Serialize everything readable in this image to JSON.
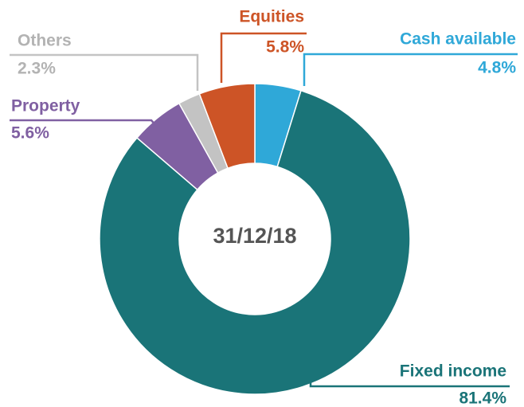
{
  "chart_data": {
    "type": "donut",
    "center_label": "31/12/18",
    "categories": [
      "Cash available",
      "Fixed income",
      "Property",
      "Others",
      "Equities"
    ],
    "values": [
      4.8,
      81.4,
      5.6,
      2.3,
      5.8
    ],
    "value_labels": [
      "4.8%",
      "81.4%",
      "5.6%",
      "2.3%",
      "5.8%"
    ],
    "colors": [
      "#2fa8d8",
      "#1a7478",
      "#8060a2",
      "#c3c3c3",
      "#cd5426"
    ]
  }
}
